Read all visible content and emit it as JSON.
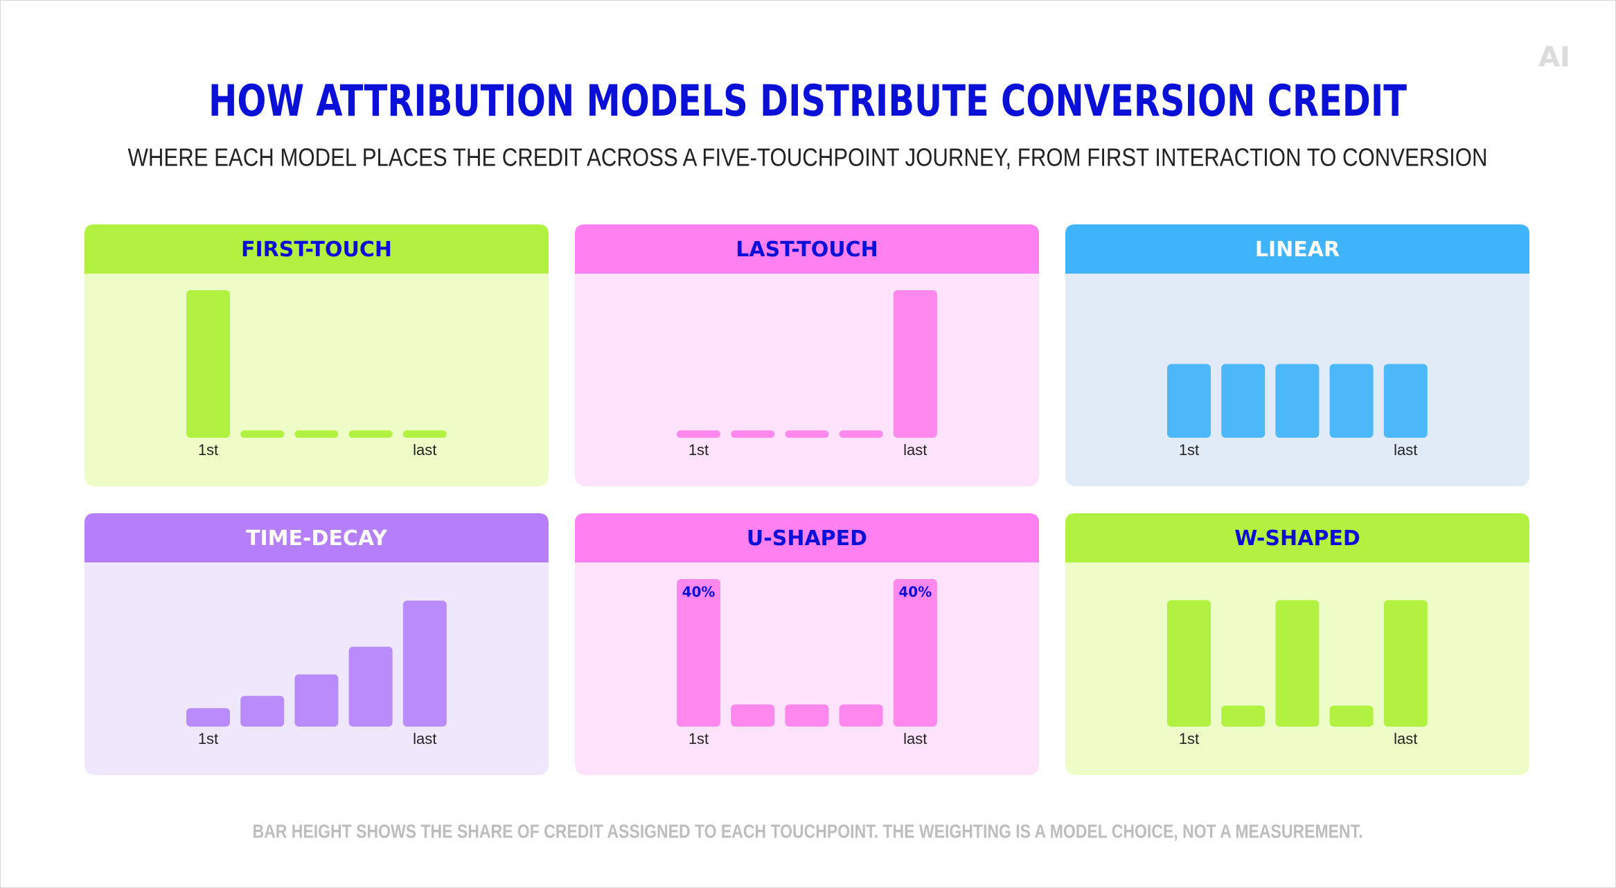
{
  "title": "HOW ATTRIBUTION MODELS DISTRIBUTE CONVERSION CREDIT",
  "subtitle": "WHERE EACH MODEL PLACES THE CREDIT ACROSS A FIVE-TOUCHPOINT JOURNEY, FROM FIRST INTERACTION TO CONVERSION",
  "footnote": "BAR HEIGHT SHOWS THE SHARE OF CREDIT ASSIGNED TO EACH TOUCHPOINT. THE WEIGHTING IS A MODEL CHOICE, NOT A MEASUREMENT.",
  "logo": "AI",
  "chart_data": [
    {
      "type": "bar",
      "title": "FIRST-TOUCH",
      "categories": [
        "1st",
        null,
        null,
        null,
        "last"
      ],
      "values": [
        100,
        5,
        5,
        5,
        5
      ],
      "ylim": [
        0,
        100
      ],
      "color": "#b1f240",
      "header_color": "#b1f240",
      "header_text_color": "#0b10d6",
      "background_color": "#eefdc8"
    },
    {
      "type": "bar",
      "title": "LAST-TOUCH",
      "categories": [
        "1st",
        null,
        null,
        null,
        "last"
      ],
      "values": [
        5,
        5,
        5,
        5,
        100
      ],
      "ylim": [
        0,
        100
      ],
      "color": "#ff88ee",
      "header_color": "#ff80f0",
      "header_text_color": "#0b10d6",
      "background_color": "#ffe3fa"
    },
    {
      "type": "bar",
      "title": "LINEAR",
      "categories": [
        "1st",
        null,
        null,
        null,
        "last"
      ],
      "values": [
        20,
        20,
        20,
        20,
        20
      ],
      "ylim": [
        0,
        40
      ],
      "color": "#4cb8fa",
      "header_color": "#3fb4fb",
      "header_text_color": "#ffffff",
      "background_color": "#e1ebf8"
    },
    {
      "type": "bar",
      "title": "TIME-DECAY",
      "categories": [
        "1st",
        null,
        null,
        null,
        "last"
      ],
      "values": [
        6,
        10,
        17,
        26,
        41
      ],
      "ylim": [
        0,
        48
      ],
      "color": "#b98afa",
      "header_color": "#b57ffa",
      "header_text_color": "#ffffff",
      "background_color": "#efe8fd"
    },
    {
      "type": "bar",
      "title": "U-SHAPED",
      "categories": [
        "1st",
        null,
        null,
        null,
        "last"
      ],
      "values": [
        40,
        6,
        6,
        6,
        40
      ],
      "value_labels": [
        "40%",
        null,
        null,
        null,
        "40%"
      ],
      "ylim": [
        0,
        40
      ],
      "color": "#ff88ee",
      "header_color": "#ff80f0",
      "header_text_color": "#0b10d6",
      "background_color": "#ffe3fa"
    },
    {
      "type": "bar",
      "title": "W-SHAPED",
      "categories": [
        "1st",
        null,
        null,
        null,
        "last"
      ],
      "values": [
        30,
        5,
        30,
        5,
        30
      ],
      "ylim": [
        0,
        35
      ],
      "color": "#b1f240",
      "header_color": "#b1f240",
      "header_text_color": "#0b10d6",
      "background_color": "#eefdc8"
    }
  ]
}
